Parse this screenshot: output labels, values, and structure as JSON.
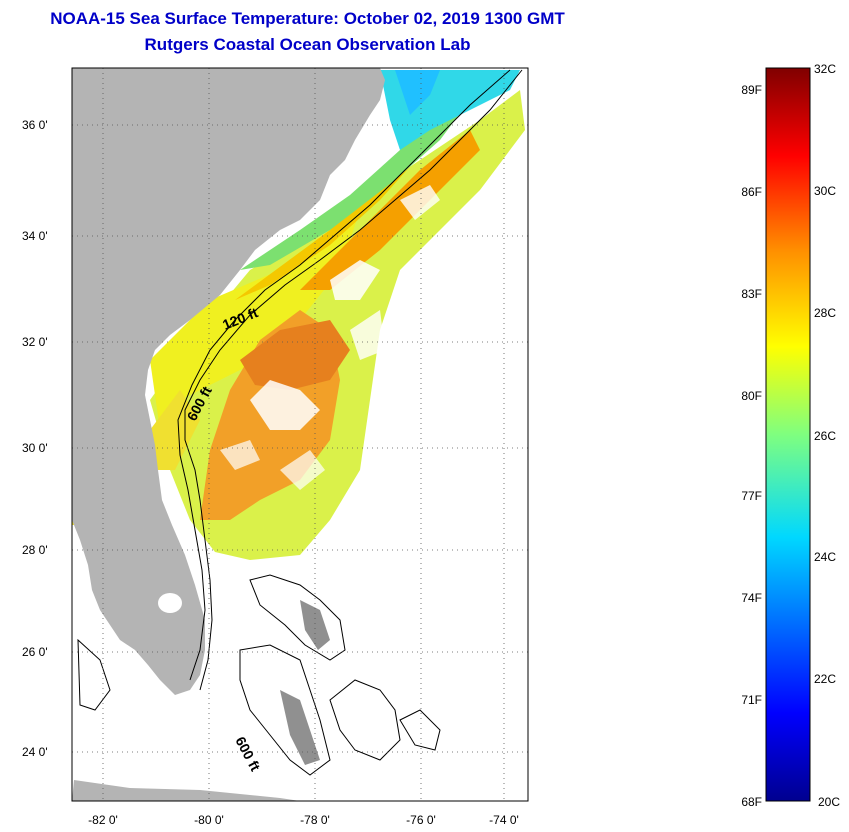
{
  "header": {
    "title_line1": "NOAA-15 Sea Surface Temperature:  October 02, 2019 1300 GMT",
    "title_line2": "Rutgers Coastal Ocean Observation Lab"
  },
  "map": {
    "lat_ticks": [
      "36 0'",
      "34 0'",
      "32 0'",
      "30 0'",
      "28 0'",
      "26 0'",
      "24 0'"
    ],
    "lon_ticks": [
      "-82 0'",
      "-80 0'",
      "-78 0'",
      "-76 0'",
      "-74 0'"
    ],
    "isobath_labels": [
      "120 ft",
      "600 ft",
      "600 ft"
    ],
    "colors": {
      "land": "#b4b4b4",
      "ocean_nodata": "#ffffff",
      "grid": "#555555"
    }
  },
  "colorbar": {
    "fahrenheit_labels": [
      "89F",
      "86F",
      "83F",
      "80F",
      "77F",
      "74F",
      "71F",
      "68F"
    ],
    "celsius_labels": [
      "32C",
      "30C",
      "28C",
      "26C",
      "24C",
      "22C",
      "20C"
    ]
  }
}
